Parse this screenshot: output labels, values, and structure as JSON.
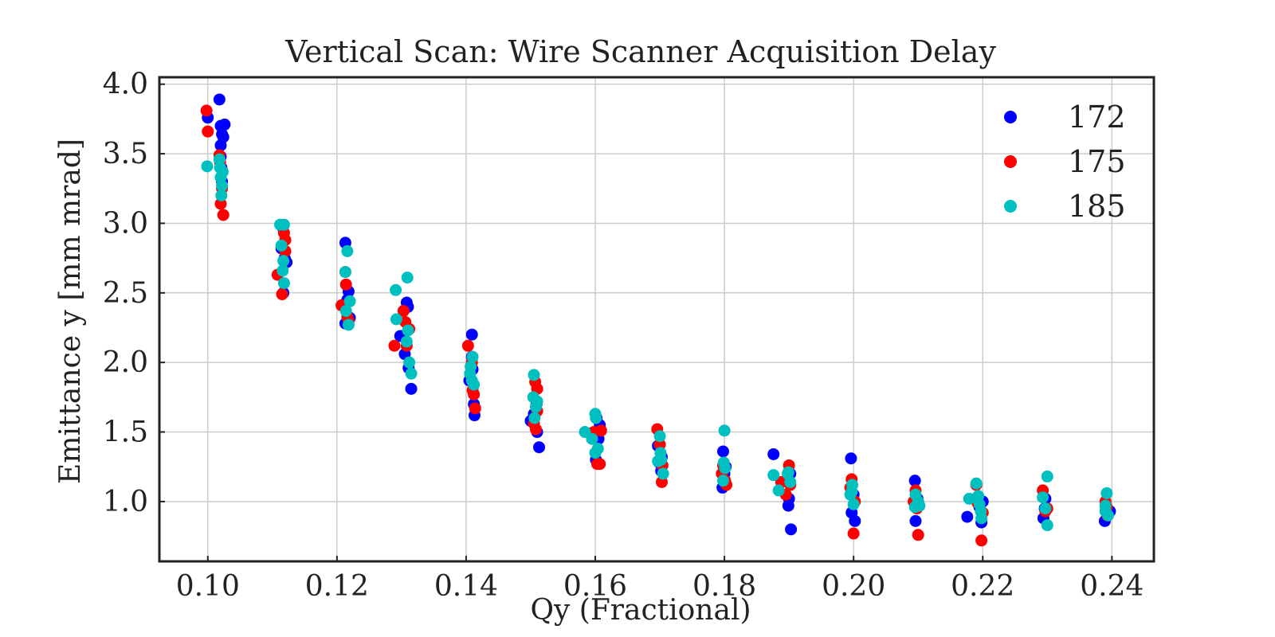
{
  "chart_data": {
    "type": "scatter",
    "title": "Vertical Scan: Wire Scanner Acquisition Delay",
    "xlabel": "Qy (Fractional)",
    "ylabel": "Emittance y [mm mrad]",
    "xlim": [
      0.0925,
      0.2465
    ],
    "ylim": [
      0.57,
      4.05
    ],
    "xticks": [
      "0.10",
      "0.12",
      "0.14",
      "0.16",
      "0.18",
      "0.20",
      "0.22",
      "0.24"
    ],
    "yticks": [
      "1.0",
      "1.5",
      "2.0",
      "2.5",
      "3.0",
      "3.5",
      "4.0"
    ],
    "grid": true,
    "legend_position": "top-right",
    "series": [
      {
        "name": "172",
        "color": "#0000ff",
        "points": [
          [
            0.1,
            3.76
          ],
          [
            0.1018,
            3.89
          ],
          [
            0.102,
            3.7
          ],
          [
            0.1022,
            3.64
          ],
          [
            0.102,
            3.56
          ],
          [
            0.102,
            3.48
          ],
          [
            0.1026,
            3.71
          ],
          [
            0.1024,
            3.62
          ],
          [
            0.1021,
            3.4
          ],
          [
            0.1022,
            3.3
          ],
          [
            0.1114,
            2.82
          ],
          [
            0.1116,
            2.97
          ],
          [
            0.1117,
            2.5
          ],
          [
            0.1119,
            2.75
          ],
          [
            0.1122,
            2.72
          ],
          [
            0.1213,
            2.86
          ],
          [
            0.1213,
            2.28
          ],
          [
            0.1216,
            2.45
          ],
          [
            0.1218,
            2.51
          ],
          [
            0.122,
            2.32
          ],
          [
            0.1308,
            2.43
          ],
          [
            0.131,
            2.4
          ],
          [
            0.1305,
            2.06
          ],
          [
            0.1311,
            1.96
          ],
          [
            0.1315,
            1.81
          ],
          [
            0.1298,
            2.19
          ],
          [
            0.1409,
            2.2
          ],
          [
            0.1405,
            1.87
          ],
          [
            0.141,
            1.95
          ],
          [
            0.1412,
            1.7
          ],
          [
            0.1413,
            1.62
          ],
          [
            0.1409,
            2.04
          ],
          [
            0.1505,
            1.63
          ],
          [
            0.1509,
            1.7
          ],
          [
            0.151,
            1.5
          ],
          [
            0.1513,
            1.39
          ],
          [
            0.15,
            1.58
          ],
          [
            0.1602,
            1.6
          ],
          [
            0.1605,
            1.45
          ],
          [
            0.1607,
            1.55
          ],
          [
            0.1601,
            1.3
          ],
          [
            0.1697,
            1.4
          ],
          [
            0.1702,
            1.22
          ],
          [
            0.1699,
            1.28
          ],
          [
            0.1703,
            1.32
          ],
          [
            0.1798,
            1.36
          ],
          [
            0.1797,
            1.1
          ],
          [
            0.18,
            1.2
          ],
          [
            0.1802,
            1.25
          ],
          [
            0.1876,
            1.34
          ],
          [
            0.1899,
            0.97
          ],
          [
            0.19,
            1.02
          ],
          [
            0.1903,
            0.8
          ],
          [
            0.1902,
            1.2
          ],
          [
            0.1996,
            1.31
          ],
          [
            0.1997,
            0.92
          ],
          [
            0.2002,
            0.86
          ],
          [
            0.2,
            1.05
          ],
          [
            0.2095,
            1.15
          ],
          [
            0.2096,
            0.86
          ],
          [
            0.2099,
            1.02
          ],
          [
            0.2176,
            0.89
          ],
          [
            0.2198,
            0.85
          ],
          [
            0.2195,
            0.96
          ],
          [
            0.22,
            1.0
          ],
          [
            0.2294,
            0.88
          ],
          [
            0.2296,
            0.95
          ],
          [
            0.2297,
            1.02
          ],
          [
            0.2389,
            0.86
          ],
          [
            0.2393,
            0.9
          ],
          [
            0.2397,
            0.93
          ]
        ]
      },
      {
        "name": "175",
        "color": "#ff0000",
        "points": [
          [
            0.0998,
            3.81
          ],
          [
            0.1,
            3.66
          ],
          [
            0.1018,
            3.49
          ],
          [
            0.1022,
            3.25
          ],
          [
            0.1024,
            3.06
          ],
          [
            0.102,
            3.14
          ],
          [
            0.1019,
            3.44
          ],
          [
            0.1108,
            2.63
          ],
          [
            0.1115,
            2.49
          ],
          [
            0.1118,
            2.93
          ],
          [
            0.112,
            2.8
          ],
          [
            0.112,
            2.88
          ],
          [
            0.1207,
            2.41
          ],
          [
            0.1213,
            2.65
          ],
          [
            0.1214,
            2.56
          ],
          [
            0.1216,
            2.33
          ],
          [
            0.1218,
            2.3
          ],
          [
            0.1289,
            2.12
          ],
          [
            0.1303,
            2.37
          ],
          [
            0.1306,
            2.29
          ],
          [
            0.1308,
            2.12
          ],
          [
            0.1312,
            2.24
          ],
          [
            0.1403,
            2.12
          ],
          [
            0.1409,
            2.0
          ],
          [
            0.141,
            1.8
          ],
          [
            0.1412,
            1.77
          ],
          [
            0.1414,
            1.67
          ],
          [
            0.1507,
            1.86
          ],
          [
            0.151,
            1.81
          ],
          [
            0.1508,
            1.52
          ],
          [
            0.1505,
            1.56
          ],
          [
            0.151,
            1.65
          ],
          [
            0.1592,
            1.49
          ],
          [
            0.1598,
            1.5
          ],
          [
            0.1603,
            1.27
          ],
          [
            0.1607,
            1.27
          ],
          [
            0.1609,
            1.51
          ],
          [
            0.1696,
            1.52
          ],
          [
            0.17,
            1.41
          ],
          [
            0.1703,
            1.14
          ],
          [
            0.1704,
            1.26
          ],
          [
            0.1798,
            1.26
          ],
          [
            0.1801,
            1.15
          ],
          [
            0.1803,
            1.12
          ],
          [
            0.1796,
            1.2
          ],
          [
            0.1888,
            1.14
          ],
          [
            0.19,
            1.26
          ],
          [
            0.1902,
            1.12
          ],
          [
            0.1895,
            1.05
          ],
          [
            0.1995,
            1.1
          ],
          [
            0.1997,
            1.16
          ],
          [
            0.2,
            0.77
          ],
          [
            0.2002,
            1.0
          ],
          [
            0.2093,
            1.0
          ],
          [
            0.2096,
            1.08
          ],
          [
            0.21,
            0.76
          ],
          [
            0.2098,
            0.95
          ],
          [
            0.219,
            1.12
          ],
          [
            0.2192,
            0.99
          ],
          [
            0.2198,
            0.72
          ],
          [
            0.22,
            0.92
          ],
          [
            0.2293,
            1.08
          ],
          [
            0.2297,
            0.93
          ],
          [
            0.23,
            0.95
          ],
          [
            0.239,
            1.0
          ],
          [
            0.2393,
            0.9
          ],
          [
            0.2392,
            0.96
          ]
        ]
      },
      {
        "name": "185",
        "color": "#00bfbf",
        "points": [
          [
            0.0999,
            3.41
          ],
          [
            0.1018,
            3.46
          ],
          [
            0.102,
            3.33
          ],
          [
            0.1021,
            3.2
          ],
          [
            0.1022,
            3.27
          ],
          [
            0.1019,
            3.4
          ],
          [
            0.1023,
            3.37
          ],
          [
            0.1112,
            2.99
          ],
          [
            0.1114,
            2.84
          ],
          [
            0.1116,
            2.66
          ],
          [
            0.1118,
            2.57
          ],
          [
            0.1117,
            2.73
          ],
          [
            0.1118,
            2.99
          ],
          [
            0.1213,
            2.65
          ],
          [
            0.1216,
            2.8
          ],
          [
            0.1214,
            2.37
          ],
          [
            0.1218,
            2.27
          ],
          [
            0.122,
            2.44
          ],
          [
            0.1291,
            2.52
          ],
          [
            0.1292,
            2.31
          ],
          [
            0.1309,
            2.61
          ],
          [
            0.131,
            2.23
          ],
          [
            0.1308,
            2.15
          ],
          [
            0.1312,
            2.0
          ],
          [
            0.1315,
            1.92
          ],
          [
            0.1406,
            1.92
          ],
          [
            0.141,
            2.04
          ],
          [
            0.1412,
            1.84
          ],
          [
            0.1407,
            1.97
          ],
          [
            0.1409,
            1.87
          ],
          [
            0.1505,
            1.91
          ],
          [
            0.1504,
            1.75
          ],
          [
            0.1506,
            1.6
          ],
          [
            0.1508,
            1.68
          ],
          [
            0.151,
            1.72
          ],
          [
            0.1584,
            1.5
          ],
          [
            0.1595,
            1.45
          ],
          [
            0.16,
            1.63
          ],
          [
            0.1601,
            1.6
          ],
          [
            0.1604,
            1.38
          ],
          [
            0.16,
            1.35
          ],
          [
            0.17,
            1.47
          ],
          [
            0.1701,
            1.35
          ],
          [
            0.1702,
            1.3
          ],
          [
            0.1705,
            1.2
          ],
          [
            0.1697,
            1.29
          ],
          [
            0.18,
            1.51
          ],
          [
            0.1799,
            1.28
          ],
          [
            0.1798,
            1.15
          ],
          [
            0.1801,
            1.24
          ],
          [
            0.1876,
            1.19
          ],
          [
            0.1884,
            1.08
          ],
          [
            0.1898,
            1.2
          ],
          [
            0.1899,
            1.21
          ],
          [
            0.1902,
            1.14
          ],
          [
            0.1998,
            1.12
          ],
          [
            0.1995,
            1.05
          ],
          [
            0.2,
            0.98
          ],
          [
            0.1997,
            1.07
          ],
          [
            0.2096,
            1.05
          ],
          [
            0.2095,
            0.96
          ],
          [
            0.21,
            1.0
          ],
          [
            0.2102,
            0.97
          ],
          [
            0.2179,
            1.02
          ],
          [
            0.219,
            1.13
          ],
          [
            0.2193,
            1.04
          ],
          [
            0.2195,
            0.98
          ],
          [
            0.2197,
            0.93
          ],
          [
            0.2198,
            0.88
          ],
          [
            0.2293,
            1.03
          ],
          [
            0.2297,
            0.95
          ],
          [
            0.23,
            0.83
          ],
          [
            0.23,
            1.18
          ],
          [
            0.2392,
            1.06
          ],
          [
            0.239,
            0.97
          ],
          [
            0.2394,
            0.9
          ],
          [
            0.239,
            0.93
          ]
        ]
      }
    ]
  }
}
